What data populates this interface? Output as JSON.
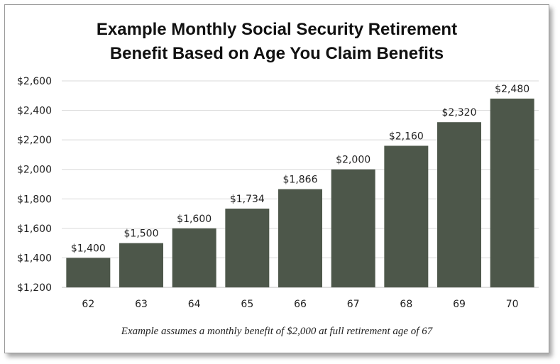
{
  "title_line1": "Example Monthly Social Security Retirement",
  "title_line2": "Benefit Based on Age You Claim Benefits",
  "footnote": "Example assumes a monthly benefit of $2,000 at full retirement age of 67",
  "colors": {
    "bar": "#4d574a",
    "grid": "#d9d9d9",
    "axis": "#bfbfbf"
  },
  "chart_data": {
    "type": "bar",
    "title": "Example Monthly Social Security Retirement Benefit Based on Age You Claim Benefits",
    "categories": [
      "62",
      "63",
      "64",
      "65",
      "66",
      "67",
      "68",
      "69",
      "70"
    ],
    "values": [
      1400,
      1500,
      1600,
      1734,
      1866,
      2000,
      2160,
      2320,
      2480
    ],
    "data_labels": [
      "$1,400",
      "$1,500",
      "$1,600",
      "$1,734",
      "$1,866",
      "$2,000",
      "$2,160",
      "$2,320",
      "$2,480"
    ],
    "y_ticks": [
      1200,
      1400,
      1600,
      1800,
      2000,
      2200,
      2400,
      2600
    ],
    "y_tick_labels": [
      "$1,200",
      "$1,400",
      "$1,600",
      "$1,800",
      "$2,000",
      "$2,200",
      "$2,400",
      "$2,600"
    ],
    "ylim": [
      1200,
      2600
    ],
    "xlabel": "",
    "ylabel": "",
    "grid": true,
    "legend": "none"
  }
}
